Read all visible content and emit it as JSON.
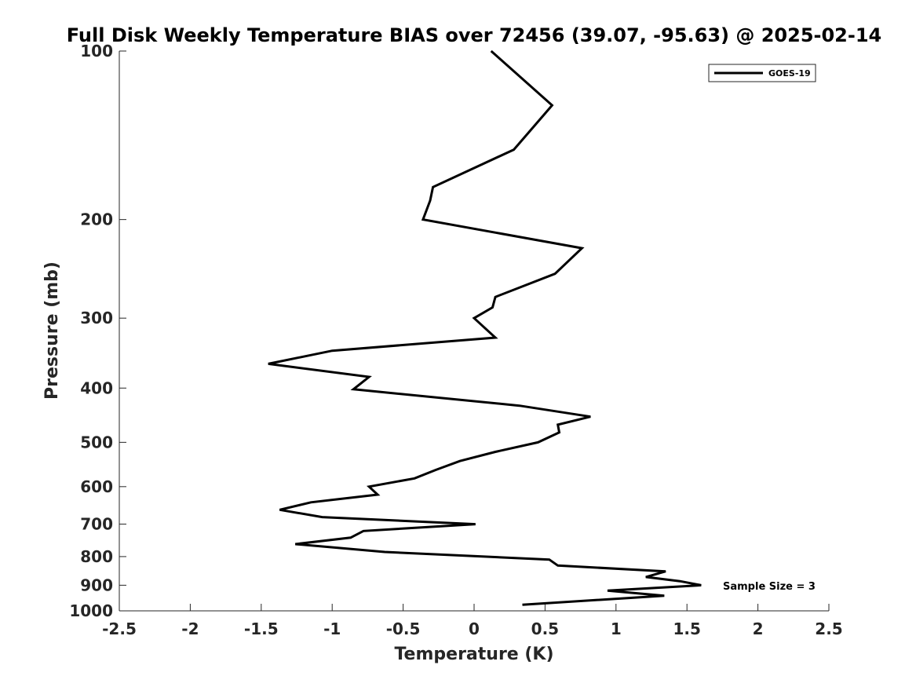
{
  "chart_data": {
    "type": "line",
    "title": "Full Disk Weekly Temperature BIAS over 72456 (39.07, -95.63) @ 2025-02-14",
    "xlabel": "Temperature (K)",
    "ylabel": "Pressure (mb)",
    "xlim": [
      -2.5,
      2.5
    ],
    "ylim": [
      100,
      1000
    ],
    "yscale": "log",
    "xticks": [
      -2.5,
      -2,
      -1.5,
      -1,
      -0.5,
      0,
      0.5,
      1,
      1.5,
      2,
      2.5
    ],
    "xtick_labels": [
      "-2.5",
      "-2",
      "-1.5",
      "-1",
      "-0.5",
      "0",
      "0.5",
      "1",
      "1.5",
      "2",
      "2.5"
    ],
    "yticks": [
      100,
      200,
      300,
      400,
      500,
      600,
      700,
      800,
      900,
      1000
    ],
    "ytick_labels": [
      "100",
      "200",
      "300",
      "400",
      "500",
      "600",
      "700",
      "800",
      "900",
      "1000"
    ],
    "legend": {
      "position": "top-right",
      "entries": [
        "GOES-19"
      ]
    },
    "annotation": "Sample Size = 3",
    "series": [
      {
        "name": "GOES-19",
        "color": "#000000",
        "points": [
          {
            "x": 0.12,
            "y": 100
          },
          {
            "x": 0.55,
            "y": 125
          },
          {
            "x": 0.28,
            "y": 150
          },
          {
            "x": -0.29,
            "y": 175
          },
          {
            "x": -0.31,
            "y": 185
          },
          {
            "x": -0.36,
            "y": 200
          },
          {
            "x": 0.76,
            "y": 225
          },
          {
            "x": 0.57,
            "y": 250
          },
          {
            "x": 0.15,
            "y": 275
          },
          {
            "x": 0.13,
            "y": 287
          },
          {
            "x": 0.0,
            "y": 300
          },
          {
            "x": 0.15,
            "y": 325
          },
          {
            "x": -1.0,
            "y": 343
          },
          {
            "x": -1.45,
            "y": 362
          },
          {
            "x": -0.74,
            "y": 382
          },
          {
            "x": -0.85,
            "y": 402
          },
          {
            "x": 0.32,
            "y": 430
          },
          {
            "x": 0.82,
            "y": 450
          },
          {
            "x": 0.59,
            "y": 465
          },
          {
            "x": 0.6,
            "y": 480
          },
          {
            "x": 0.45,
            "y": 500
          },
          {
            "x": 0.15,
            "y": 520
          },
          {
            "x": -0.1,
            "y": 540
          },
          {
            "x": -0.27,
            "y": 560
          },
          {
            "x": -0.42,
            "y": 580
          },
          {
            "x": -0.74,
            "y": 600
          },
          {
            "x": -0.68,
            "y": 620
          },
          {
            "x": -1.15,
            "y": 640
          },
          {
            "x": -1.37,
            "y": 660
          },
          {
            "x": -1.07,
            "y": 680
          },
          {
            "x": 0.01,
            "y": 700
          },
          {
            "x": -0.78,
            "y": 720
          },
          {
            "x": -0.87,
            "y": 740
          },
          {
            "x": -1.26,
            "y": 760
          },
          {
            "x": -0.63,
            "y": 785
          },
          {
            "x": 0.53,
            "y": 810
          },
          {
            "x": 0.59,
            "y": 830
          },
          {
            "x": 1.35,
            "y": 850
          },
          {
            "x": 1.21,
            "y": 870
          },
          {
            "x": 1.45,
            "y": 885
          },
          {
            "x": 1.6,
            "y": 900
          },
          {
            "x": 0.94,
            "y": 920
          },
          {
            "x": 1.34,
            "y": 940
          },
          {
            "x": 0.34,
            "y": 975
          }
        ]
      }
    ]
  }
}
